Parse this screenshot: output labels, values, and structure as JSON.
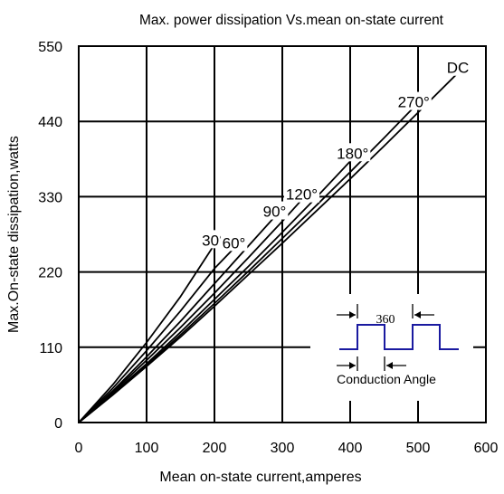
{
  "chart_data": {
    "type": "line",
    "title": "Max. power dissipation Vs.mean on-state current",
    "xlabel": "Mean on-state current,amperes",
    "ylabel": "Max.On-state dissipation,watts",
    "xlim": [
      0,
      600
    ],
    "ylim": [
      0,
      550
    ],
    "x_ticks": [
      "0",
      "100",
      "200",
      "300",
      "400",
      "500",
      "600"
    ],
    "y_ticks": [
      "0",
      "110",
      "220",
      "330",
      "440",
      "550"
    ],
    "grid": true,
    "series": [
      {
        "name": "30°",
        "x": [
          0,
          50,
          100,
          150,
          200
        ],
        "y": [
          0,
          55,
          117,
          184,
          260
        ]
      },
      {
        "name": "60°",
        "x": [
          0,
          50,
          100,
          150,
          200,
          230
        ],
        "y": [
          0,
          50,
          105,
          163,
          225,
          256
        ]
      },
      {
        "name": "90°",
        "x": [
          0,
          50,
          100,
          150,
          200,
          250,
          290
        ],
        "y": [
          0,
          46,
          96,
          148,
          203,
          258,
          302
        ]
      },
      {
        "name": "120°",
        "x": [
          0,
          50,
          100,
          150,
          200,
          250,
          300,
          330
        ],
        "y": [
          0,
          44,
          91,
          139,
          189,
          241,
          294,
          327
        ]
      },
      {
        "name": "180°",
        "x": [
          0,
          50,
          100,
          150,
          200,
          250,
          300,
          350,
          405
        ],
        "y": [
          0,
          42,
          86,
          132,
          180,
          228,
          278,
          329,
          387
        ]
      },
      {
        "name": "270°",
        "x": [
          0,
          50,
          100,
          150,
          200,
          250,
          300,
          350,
          400,
          450,
          495
        ],
        "y": [
          0,
          41,
          84,
          128,
          174,
          221,
          269,
          317,
          366,
          416,
          462
        ]
      },
      {
        "name": "DC",
        "x": [
          0,
          50,
          100,
          150,
          200,
          250,
          300,
          350,
          400,
          450,
          500,
          560
        ],
        "y": [
          0,
          40,
          82,
          125,
          170,
          216,
          262,
          309,
          356,
          404,
          453,
          512
        ]
      }
    ],
    "inset": {
      "label_360": "360",
      "label_angle": "Conduction Angle",
      "color": "#1a1aa0"
    }
  }
}
